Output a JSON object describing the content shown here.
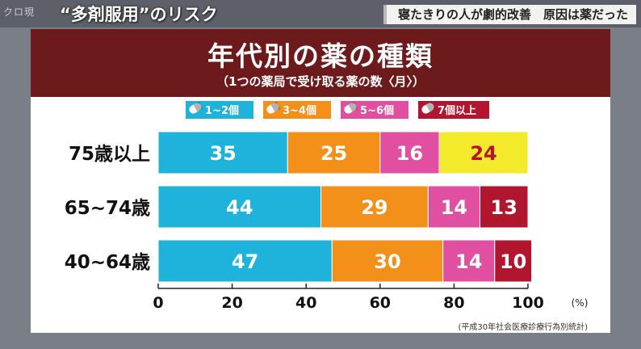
{
  "broadcast": {
    "logo": "クロ現",
    "topic": "“多剤服用”のリスク",
    "headline": "寝たきりの人が劇的改善　原因は薬だった"
  },
  "colors": {
    "title_band": "#6c1a1c",
    "series": [
      "#1fb3dc",
      "#f39019",
      "#e04fa0",
      "#b2152e"
    ],
    "highlight": "#f2ea2a"
  },
  "chart_data": {
    "type": "bar",
    "orientation": "horizontal",
    "stacked": true,
    "title": "年代別の薬の種類",
    "subtitle": "（1つの薬局で受け取る薬の数〈月〉）",
    "categories": [
      "75歳以上",
      "65~74歳",
      "40~64歳"
    ],
    "series": [
      {
        "name": "1~2個",
        "values": [
          35,
          44,
          47
        ]
      },
      {
        "name": "3~4個",
        "values": [
          25,
          29,
          30
        ]
      },
      {
        "name": "5~6個",
        "values": [
          16,
          14,
          14
        ]
      },
      {
        "name": "7個以上",
        "values": [
          24,
          13,
          10
        ]
      }
    ],
    "highlighted": {
      "category": "75歳以上",
      "series": "7個以上"
    },
    "xlim": [
      0,
      100
    ],
    "xticks": [
      0,
      20,
      40,
      60,
      80,
      100
    ],
    "xunit": "(%)",
    "legend_position": "top",
    "grid": false,
    "source": "(平成30年社会医療診療行為別統計)"
  }
}
